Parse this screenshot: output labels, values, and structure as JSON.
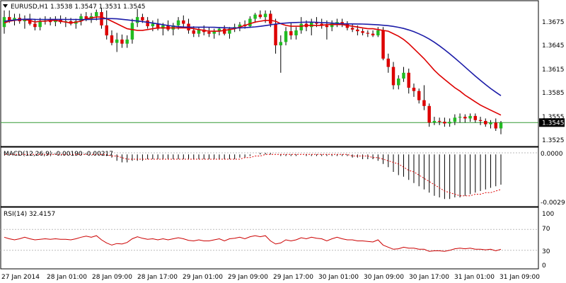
{
  "header": {
    "title": "EURUSD,H1  1.3538 1.3547 1.3531 1.3545",
    "menu_icon": "triangle-down-icon"
  },
  "colors": {
    "background": "#ffffff",
    "border": "#000000",
    "bull_candle": "#22bb22",
    "bear_candle": "#dd0000",
    "wick": "#000000",
    "ma_fast": "#dd0000",
    "ma_slow": "#1c1ca8",
    "price_line": "#339933",
    "macd_signal": "#dd0000",
    "rsi_line": "#cc0000",
    "level_line": "#bbbbbb",
    "price_badge_bg": "#000000",
    "price_badge_text": "#ffffff"
  },
  "chart_data": [
    {
      "type": "candlestick",
      "title": "EURUSD,H1",
      "ohlc_label": "1.3538 1.3547 1.3531 1.3545",
      "price_axis_ticks": [
        "1.3675",
        "1.3645",
        "1.3615",
        "1.3585",
        "1.3555",
        "1.3525"
      ],
      "ylim": [
        1.3518,
        1.369
      ],
      "current_price": "1.3545",
      "x_labels": [
        "27 Jan 2014",
        "28 Jan 01:00",
        "28 Jan 09:00",
        "28 Jan 17:00",
        "29 Jan 01:00",
        "29 Jan 09:00",
        "29 Jan 17:00",
        "30 Jan 01:00",
        "30 Jan 09:00",
        "30 Jan 17:00",
        "31 Jan 01:00",
        "31 Jan 09:00"
      ],
      "candles": [
        [
          1.366,
          1.368,
          1.3652,
          1.3672
        ],
        [
          1.3672,
          1.368,
          1.3665,
          1.3668
        ],
        [
          1.3668,
          1.3676,
          1.3662,
          1.3671
        ],
        [
          1.3671,
          1.3676,
          1.3664,
          1.3667
        ],
        [
          1.3667,
          1.3674,
          1.3658,
          1.367
        ],
        [
          1.367,
          1.3676,
          1.3662,
          1.3664
        ],
        [
          1.3664,
          1.367,
          1.3656,
          1.366
        ],
        [
          1.366,
          1.3671,
          1.3656,
          1.3667
        ],
        [
          1.3667,
          1.3673,
          1.3663,
          1.3668
        ],
        [
          1.3668,
          1.3672,
          1.3662,
          1.3666
        ],
        [
          1.3666,
          1.3673,
          1.3661,
          1.3669
        ],
        [
          1.3669,
          1.3674,
          1.3664,
          1.3666
        ],
        [
          1.3666,
          1.3672,
          1.366,
          1.3667
        ],
        [
          1.3667,
          1.3671,
          1.3662,
          1.3664
        ],
        [
          1.3664,
          1.367,
          1.3658,
          1.3667
        ],
        [
          1.3667,
          1.3676,
          1.3662,
          1.3673
        ],
        [
          1.3673,
          1.3678,
          1.3667,
          1.367
        ],
        [
          1.367,
          1.3677,
          1.3665,
          1.3673
        ],
        [
          1.3673,
          1.3681,
          1.3668,
          1.3678
        ],
        [
          1.3678,
          1.3683,
          1.3658,
          1.3662
        ],
        [
          1.3662,
          1.368,
          1.3645,
          1.365
        ],
        [
          1.365,
          1.3656,
          1.3638,
          1.3641
        ],
        [
          1.3641,
          1.3653,
          1.363,
          1.3645
        ],
        [
          1.3645,
          1.3651,
          1.3635,
          1.364
        ],
        [
          1.364,
          1.365,
          1.3635,
          1.3645
        ],
        [
          1.3645,
          1.367,
          1.364,
          1.3665
        ],
        [
          1.3665,
          1.3682,
          1.366,
          1.3672
        ],
        [
          1.3672,
          1.3676,
          1.3665,
          1.3668
        ],
        [
          1.3668,
          1.3672,
          1.3658,
          1.3661
        ],
        [
          1.3661,
          1.3668,
          1.3655,
          1.3664
        ],
        [
          1.3664,
          1.367,
          1.3656,
          1.3658
        ],
        [
          1.3658,
          1.3665,
          1.365,
          1.3662
        ],
        [
          1.3662,
          1.3668,
          1.3655,
          1.3657
        ],
        [
          1.3657,
          1.3665,
          1.365,
          1.3662
        ],
        [
          1.3662,
          1.3672,
          1.3657,
          1.3668
        ],
        [
          1.3668,
          1.3674,
          1.366,
          1.3664
        ],
        [
          1.3664,
          1.367,
          1.3652,
          1.3656
        ],
        [
          1.3656,
          1.3661,
          1.3648,
          1.3652
        ],
        [
          1.3652,
          1.366,
          1.3648,
          1.3657
        ],
        [
          1.3657,
          1.3662,
          1.365,
          1.3654
        ],
        [
          1.3654,
          1.366,
          1.3648,
          1.3652
        ],
        [
          1.3652,
          1.3658,
          1.3646,
          1.3655
        ],
        [
          1.3655,
          1.366,
          1.365,
          1.3658
        ],
        [
          1.3658,
          1.3662,
          1.365,
          1.3652
        ],
        [
          1.3652,
          1.366,
          1.3646,
          1.3658
        ],
        [
          1.3658,
          1.3664,
          1.3654,
          1.366
        ],
        [
          1.366,
          1.3666,
          1.3655,
          1.3663
        ],
        [
          1.3663,
          1.3668,
          1.3658,
          1.3661
        ],
        [
          1.3661,
          1.3673,
          1.3659,
          1.367
        ],
        [
          1.367,
          1.3677,
          1.3665,
          1.3675
        ],
        [
          1.3675,
          1.368,
          1.367,
          1.3672
        ],
        [
          1.3672,
          1.368,
          1.3665,
          1.3676
        ],
        [
          1.3676,
          1.368,
          1.366,
          1.3664
        ],
        [
          1.3664,
          1.367,
          1.3628,
          1.3638
        ],
        [
          1.3638,
          1.365,
          1.3605,
          1.3642
        ],
        [
          1.3642,
          1.366,
          1.3638,
          1.3655
        ],
        [
          1.3655,
          1.3665,
          1.3645,
          1.365
        ],
        [
          1.365,
          1.366,
          1.3645,
          1.3656
        ],
        [
          1.3656,
          1.3672,
          1.3652,
          1.3664
        ],
        [
          1.3664,
          1.3668,
          1.3655,
          1.366
        ],
        [
          1.366,
          1.367,
          1.365,
          1.3666
        ],
        [
          1.3666,
          1.3672,
          1.366,
          1.3664
        ],
        [
          1.3664,
          1.367,
          1.3658,
          1.3662
        ],
        [
          1.3662,
          1.3668,
          1.3645,
          1.366
        ],
        [
          1.366,
          1.3668,
          1.3655,
          1.3664
        ],
        [
          1.3664,
          1.367,
          1.366,
          1.3666
        ],
        [
          1.3666,
          1.367,
          1.366,
          1.3664
        ],
        [
          1.3664,
          1.3667,
          1.3656,
          1.3659
        ],
        [
          1.3659,
          1.3664,
          1.3654,
          1.3657
        ],
        [
          1.3657,
          1.3662,
          1.365,
          1.3655
        ],
        [
          1.3655,
          1.3658,
          1.365,
          1.3653
        ],
        [
          1.3653,
          1.3656,
          1.3648,
          1.3652
        ],
        [
          1.3652,
          1.3656,
          1.3648,
          1.365
        ],
        [
          1.365,
          1.366,
          1.3648,
          1.3656
        ],
        [
          1.3656,
          1.366,
          1.362,
          1.3622
        ],
        [
          1.3622,
          1.3628,
          1.3605,
          1.3612
        ],
        [
          1.3612,
          1.3618,
          1.3585,
          1.359
        ],
        [
          1.359,
          1.3602,
          1.3585,
          1.3598
        ],
        [
          1.3598,
          1.3612,
          1.3594,
          1.3605
        ],
        [
          1.3605,
          1.361,
          1.358,
          1.3587
        ],
        [
          1.3587,
          1.3592,
          1.3576,
          1.3583
        ],
        [
          1.3583,
          1.3586,
          1.3568,
          1.3572
        ],
        [
          1.3572,
          1.359,
          1.356,
          1.3565
        ],
        [
          1.3565,
          1.3568,
          1.354,
          1.3545
        ],
        [
          1.3545,
          1.3552,
          1.3542,
          1.3547
        ],
        [
          1.3547,
          1.3551,
          1.3542,
          1.3546
        ],
        [
          1.3546,
          1.3551,
          1.354,
          1.3544
        ],
        [
          1.3544,
          1.355,
          1.354,
          1.3546
        ],
        [
          1.3546,
          1.3555,
          1.3542,
          1.3551
        ],
        [
          1.3551,
          1.3556,
          1.3545,
          1.3552
        ],
        [
          1.3552,
          1.3555,
          1.3545,
          1.355
        ],
        [
          1.355,
          1.3556,
          1.3546,
          1.3553
        ],
        [
          1.3553,
          1.3556,
          1.3545,
          1.3548
        ],
        [
          1.3548,
          1.3552,
          1.3542,
          1.3547
        ],
        [
          1.3547,
          1.355,
          1.354,
          1.3543
        ],
        [
          1.3543,
          1.3548,
          1.3538,
          1.3545
        ],
        [
          1.3545,
          1.355,
          1.3535,
          1.3538
        ],
        [
          1.3538,
          1.3547,
          1.3531,
          1.3545
        ]
      ],
      "ma_fast": [
        1.3665,
        1.3667,
        1.3668,
        1.3669,
        1.3669,
        1.3668,
        1.3666,
        1.3667,
        1.3667,
        1.3668,
        1.3668,
        1.3667,
        1.3666,
        1.3665,
        1.3666,
        1.3667,
        1.367,
        1.3671,
        1.3672,
        1.3672,
        1.367,
        1.3667,
        1.3664,
        1.3661,
        1.3658,
        1.3657,
        1.3656,
        1.3656,
        1.3657,
        1.3658,
        1.3659,
        1.3659,
        1.3659,
        1.3659,
        1.3659,
        1.3659,
        1.3659,
        1.3658,
        1.3657,
        1.3656,
        1.3655,
        1.3655,
        1.3655,
        1.3656,
        1.3657,
        1.3658,
        1.366,
        1.3662,
        1.3664,
        1.3666,
        1.3667,
        1.3668,
        1.3668,
        1.3667,
        1.3664,
        1.3662,
        1.3661,
        1.3661,
        1.3661,
        1.3662,
        1.3662,
        1.3662,
        1.3662,
        1.3663,
        1.3663,
        1.3663,
        1.3663,
        1.3662,
        1.3661,
        1.366,
        1.3659,
        1.3658,
        1.3658,
        1.3657,
        1.3656,
        1.3655,
        1.3652,
        1.3649,
        1.3645,
        1.364,
        1.3634,
        1.3628,
        1.3622,
        1.3615,
        1.3608,
        1.3602,
        1.3597,
        1.3592,
        1.3587,
        1.3583,
        1.3578,
        1.3574,
        1.357,
        1.3566,
        1.3563,
        1.356,
        1.3557,
        1.3554
      ]
    }
  ],
  "macd": {
    "label": "MACD(12,26,9) -0.00190 -0.00217",
    "ticks": [
      "0.0000",
      "-0.0029"
    ],
    "ylim": [
      -0.0031,
      0.0001
    ],
    "histogram": [
      -0.0,
      -0.0,
      -0.0,
      -0.0,
      -0.0,
      -0.0,
      -0.0,
      -0.0,
      -0.0,
      -0.0,
      -0.0,
      -0.0,
      -0.0,
      -0.0,
      -0.0,
      -0.0,
      -0.0,
      -0.0,
      -0.0,
      -0.0,
      -0.0001,
      -0.0002,
      -0.0004,
      -0.0005,
      -0.0005,
      -0.0004,
      -0.0004,
      -0.0004,
      -0.0003,
      -0.0003,
      -0.0003,
      -0.0003,
      -0.0003,
      -0.0003,
      -0.0003,
      -0.0003,
      -0.0003,
      -0.0003,
      -0.0003,
      -0.0003,
      -0.0003,
      -0.0003,
      -0.0003,
      -0.0003,
      -0.0003,
      -0.0003,
      -0.0002,
      -0.0002,
      -0.0001,
      -0.0,
      0.0001,
      0.0001,
      0.0001,
      0.0,
      -0.0001,
      -0.0001,
      -0.0001,
      -0.0001,
      -0.0,
      -0.0001,
      -0.0001,
      -0.0001,
      -0.0001,
      -0.0001,
      -0.0001,
      -0.0001,
      -0.0001,
      -0.0001,
      -0.0002,
      -0.0002,
      -0.0003,
      -0.0003,
      -0.0003,
      -0.0004,
      -0.0006,
      -0.0008,
      -0.0011,
      -0.0013,
      -0.0014,
      -0.0016,
      -0.0018,
      -0.002,
      -0.0022,
      -0.0024,
      -0.0026,
      -0.0027,
      -0.0028,
      -0.0028,
      -0.0027,
      -0.0027,
      -0.0026,
      -0.0025,
      -0.0024,
      -0.0023,
      -0.0022,
      -0.0021,
      -0.002,
      -0.0019
    ],
    "signal": [
      -0.0,
      -0.0,
      -0.0,
      -0.0,
      -0.0,
      -0.0,
      -0.0,
      -0.0,
      -0.0,
      -0.0,
      -0.0,
      -0.0,
      -0.0,
      -0.0,
      -0.0,
      -0.0,
      -0.0,
      -0.0,
      -0.0,
      -0.0,
      -0.0,
      -0.0001,
      -0.0001,
      -0.0002,
      -0.0003,
      -0.0003,
      -0.0003,
      -0.0003,
      -0.0003,
      -0.0003,
      -0.0003,
      -0.0003,
      -0.0003,
      -0.0003,
      -0.0003,
      -0.0003,
      -0.0003,
      -0.0003,
      -0.0003,
      -0.0003,
      -0.0003,
      -0.0003,
      -0.0003,
      -0.0003,
      -0.0003,
      -0.0003,
      -0.0003,
      -0.0002,
      -0.0002,
      -0.0001,
      -0.0001,
      -0.0,
      -0.0,
      -0.0,
      -0.0,
      -0.0,
      -0.0,
      -0.0,
      -0.0,
      -0.0,
      -0.0,
      -0.0,
      -0.0,
      -0.0,
      -0.0,
      -0.0,
      -0.0,
      -0.0,
      -0.0001,
      -0.0001,
      -0.0001,
      -0.0001,
      -0.0002,
      -0.0002,
      -0.0003,
      -0.0004,
      -0.0005,
      -0.0006,
      -0.0008,
      -0.001,
      -0.0011,
      -0.0013,
      -0.0015,
      -0.0017,
      -0.0019,
      -0.0021,
      -0.0023,
      -0.0024,
      -0.0025,
      -0.0026,
      -0.0026,
      -0.0026,
      -0.0025,
      -0.0025,
      -0.0024,
      -0.0024,
      -0.0023,
      -0.0022
    ]
  },
  "rsi": {
    "label": "RSI(14) 32.4157",
    "ticks": [
      "100",
      "70",
      "30",
      "0"
    ],
    "levels": [
      70,
      30
    ],
    "ylim": [
      0,
      100
    ],
    "values": [
      55,
      52,
      50,
      52,
      55,
      52,
      50,
      51,
      52,
      51,
      52,
      51,
      51,
      50,
      52,
      55,
      57,
      55,
      58,
      50,
      44,
      40,
      43,
      42,
      45,
      52,
      56,
      53,
      51,
      52,
      50,
      52,
      50,
      52,
      54,
      52,
      49,
      48,
      50,
      48,
      48,
      50,
      52,
      48,
      52,
      53,
      55,
      52,
      56,
      58,
      56,
      58,
      48,
      42,
      44,
      50,
      48,
      50,
      54,
      52,
      55,
      53,
      52,
      48,
      52,
      55,
      52,
      50,
      50,
      48,
      48,
      47,
      46,
      50,
      40,
      36,
      32,
      33,
      36,
      34,
      34,
      32,
      32,
      28,
      29,
      29,
      28,
      30,
      33,
      34,
      33,
      34,
      32,
      32,
      31,
      32,
      29,
      32
    ]
  }
}
